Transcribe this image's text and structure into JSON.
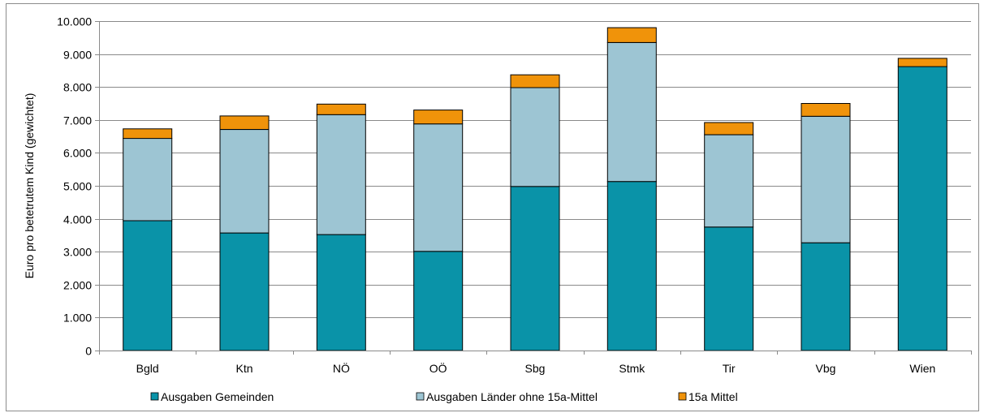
{
  "chart_data": {
    "type": "bar",
    "stacked": true,
    "categories": [
      "Bgld",
      "Ktn",
      "NÖ",
      "OÖ",
      "Sbg",
      "Stmk",
      "Tir",
      "Vbg",
      "Wien"
    ],
    "series": [
      {
        "name": "Ausgaben Gemeinden",
        "color": "#0A93A8",
        "values": [
          3940,
          3570,
          3520,
          3010,
          4980,
          5130,
          3750,
          3270,
          8620
        ]
      },
      {
        "name": "Ausgaben Länder ohne 15a-Mittel",
        "color": "#9DC5D3",
        "values": [
          2500,
          3140,
          3640,
          3870,
          3000,
          4220,
          2800,
          3840,
          0
        ]
      },
      {
        "name": "15a Mittel",
        "color": "#F0930A",
        "values": [
          290,
          410,
          320,
          420,
          390,
          450,
          370,
          390,
          250
        ]
      }
    ],
    "ylabel": "Euro pro betetrutem Kind (gewichtet)",
    "xlabel": "",
    "ylim": [
      0,
      10000
    ],
    "yticks": [
      0,
      1000,
      2000,
      3000,
      4000,
      5000,
      6000,
      7000,
      8000,
      9000,
      10000
    ],
    "ytick_labels": [
      "0",
      "1.000",
      "2.000",
      "3.000",
      "4.000",
      "5.000",
      "6.000",
      "7.000",
      "8.000",
      "9.000",
      "10.000"
    ],
    "grid": true,
    "legend_position": "bottom"
  }
}
